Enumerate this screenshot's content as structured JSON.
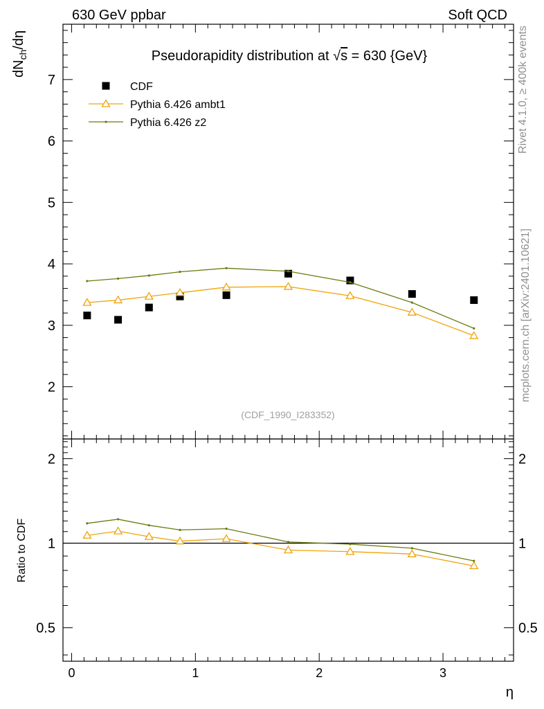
{
  "header": {
    "left": "630 GeV ppbar",
    "right": "Soft QCD"
  },
  "side_labels": {
    "rivet": "Rivet 4.1.0, ≥ 400k events",
    "mcplots": "mcplots.cern.ch [arXiv:2401.10621]"
  },
  "chart_data": [
    {
      "type": "scatter",
      "panel": "main",
      "title_prefix": "Pseudorapidity distribution at ",
      "title_sqrt": "s",
      "title_suffix": " = 630 {GeV}",
      "ylabel": "dN",
      "ylabel_sub": "ch",
      "ylabel_tail": "/dη",
      "analysis_tag": "(CDF_1990_I283352)",
      "xlim": [
        -0.07,
        3.57
      ],
      "ylim": [
        1.15,
        7.9
      ],
      "yticks": [
        "2",
        "3",
        "4",
        "5",
        "6",
        "7"
      ],
      "legend_position": "top-left",
      "x": [
        0.125,
        0.375,
        0.625,
        0.875,
        1.25,
        1.75,
        2.25,
        2.75,
        3.25
      ],
      "series": [
        {
          "name": "CDF",
          "style": "data",
          "color": "#000000",
          "values": [
            3.16,
            3.09,
            3.29,
            3.47,
            3.49,
            3.84,
            3.73,
            3.51,
            3.41
          ]
        },
        {
          "name": "Pythia 6.426 ambt1",
          "style": "triangle",
          "color": "#f0a30a",
          "values": [
            3.37,
            3.41,
            3.47,
            3.53,
            3.62,
            3.63,
            3.48,
            3.21,
            2.83
          ]
        },
        {
          "name": "Pythia 6.426 z2",
          "style": "dot",
          "color": "#6b7a0f",
          "values": [
            3.72,
            3.76,
            3.81,
            3.87,
            3.93,
            3.88,
            3.7,
            3.37,
            2.95
          ]
        }
      ]
    },
    {
      "type": "line",
      "panel": "ratio",
      "ylabel": "Ratio to CDF",
      "xlabel": "η",
      "ylim": [
        0.38,
        2.35
      ],
      "ylim_scale": "log",
      "yticks": [
        "0.5",
        "1",
        "2"
      ],
      "xticks": [
        "0",
        "1",
        "2",
        "3"
      ],
      "reference": 1,
      "x": [
        0.125,
        0.375,
        0.625,
        0.875,
        1.25,
        1.75,
        2.25,
        2.75,
        3.25
      ],
      "series": [
        {
          "name": "Pythia 6.426 ambt1",
          "style": "triangle",
          "color": "#f0a30a",
          "values": [
            1.066,
            1.104,
            1.055,
            1.017,
            1.037,
            0.945,
            0.933,
            0.915,
            0.83
          ]
        },
        {
          "name": "Pythia 6.426 z2",
          "style": "dot",
          "color": "#6b7a0f",
          "values": [
            1.177,
            1.217,
            1.158,
            1.115,
            1.126,
            1.01,
            0.992,
            0.96,
            0.865
          ]
        }
      ]
    }
  ]
}
